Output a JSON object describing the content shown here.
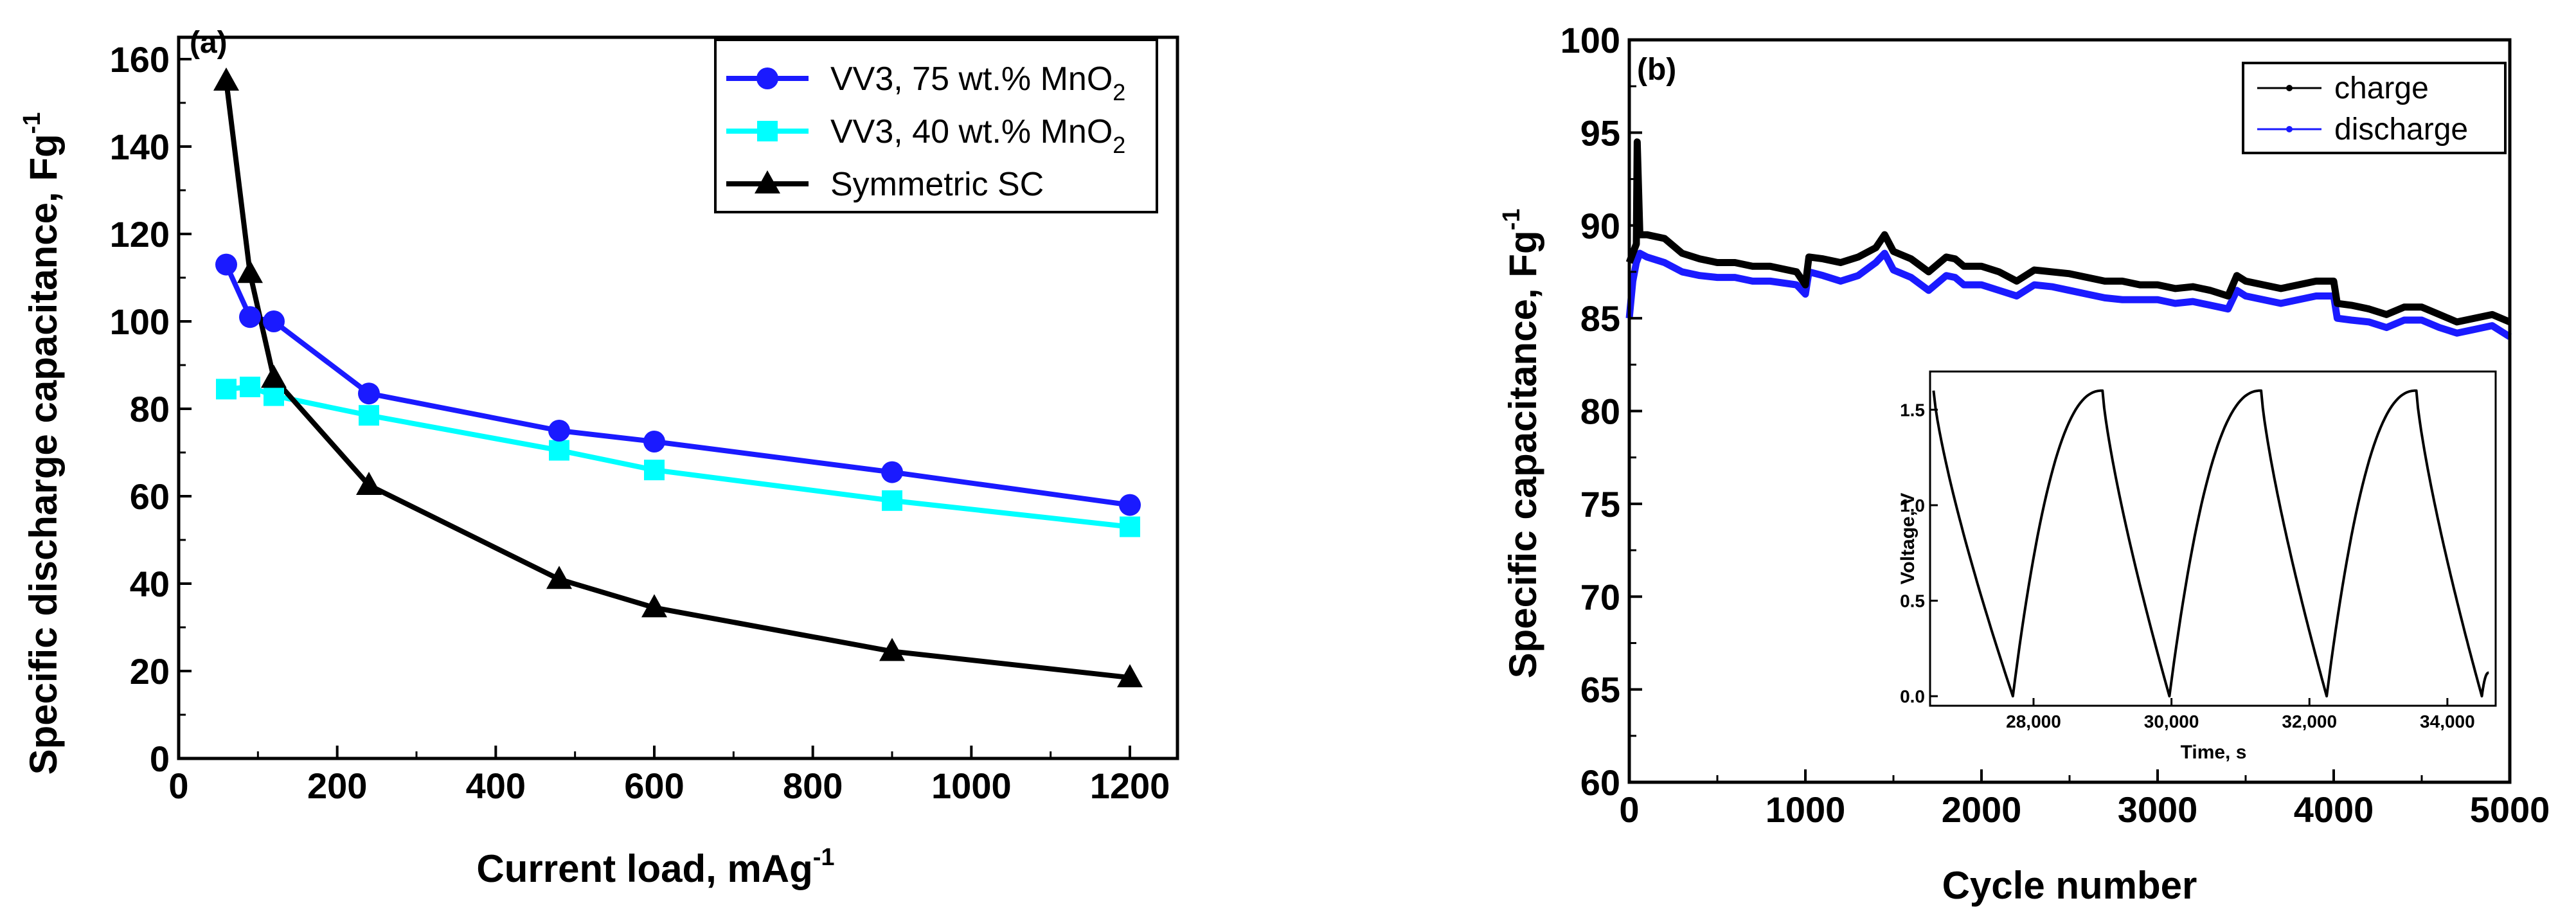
{
  "chart_data": [
    {
      "type": "line",
      "panel_label": "(a)",
      "xlabel": "Current load, mAg",
      "xlabel_sup": "-1",
      "ylabel": "Specific discharge capacitance, Fg",
      "ylabel_sup": "-1",
      "xlim": [
        0,
        1260
      ],
      "ylim": [
        0,
        165
      ],
      "xticks": [
        0,
        200,
        400,
        600,
        800,
        1000,
        1200
      ],
      "yticks": [
        0,
        20,
        40,
        60,
        80,
        100,
        120,
        140,
        160
      ],
      "legend_position": "top-right",
      "series": [
        {
          "name": "VV3, 75 wt.% MnO",
          "sub": "2",
          "color": "#1a1aff",
          "marker": "circle",
          "x": [
            60,
            90,
            120,
            240,
            480,
            600,
            900,
            1200
          ],
          "y": [
            113,
            101,
            100,
            83.5,
            75,
            72.5,
            65.5,
            58
          ]
        },
        {
          "name": "VV3, 40 wt.% MnO",
          "sub": "2",
          "color": "#00ffff",
          "marker": "square",
          "x": [
            60,
            90,
            120,
            240,
            480,
            600,
            900,
            1200
          ],
          "y": [
            84.5,
            85,
            83,
            78.5,
            70.5,
            66,
            59,
            53
          ]
        },
        {
          "name": "Symmetric SC",
          "sub": "",
          "color": "#000000",
          "marker": "triangle",
          "x": [
            60,
            90,
            120,
            240,
            480,
            600,
            900,
            1200
          ],
          "y": [
            155,
            111,
            87,
            62.5,
            41,
            34.5,
            24.5,
            18.5
          ]
        }
      ]
    },
    {
      "type": "line",
      "panel_label": "(b)",
      "xlabel": "Cycle number",
      "ylabel": "Specific capacitance, Fg",
      "ylabel_sup": "-1",
      "xlim": [
        0,
        5000
      ],
      "ylim": [
        60,
        100
      ],
      "xticks": [
        0,
        1000,
        2000,
        3000,
        4000,
        5000
      ],
      "yticks": [
        60,
        65,
        70,
        75,
        80,
        85,
        90,
        95,
        100
      ],
      "legend_position": "top-right",
      "series": [
        {
          "name": "charge",
          "color": "#000000",
          "x": [
            0,
            20,
            40,
            45,
            60,
            100,
            200,
            300,
            400,
            500,
            600,
            700,
            800,
            950,
            1000,
            1020,
            1100,
            1200,
            1300,
            1400,
            1450,
            1500,
            1600,
            1700,
            1800,
            1850,
            1900,
            2000,
            2100,
            2200,
            2300,
            2400,
            2500,
            2600,
            2700,
            2800,
            2900,
            3000,
            3100,
            3200,
            3300,
            3400,
            3450,
            3500,
            3600,
            3700,
            3800,
            3900,
            4000,
            4020,
            4100,
            4200,
            4300,
            4400,
            4500,
            4600,
            4700,
            4800,
            4900,
            5000
          ],
          "y": [
            88.0,
            88.5,
            89.0,
            94.5,
            89.5,
            89.5,
            89.3,
            88.5,
            88.2,
            88.0,
            88.0,
            87.8,
            87.8,
            87.5,
            86.8,
            88.3,
            88.2,
            88.0,
            88.3,
            88.8,
            89.5,
            88.6,
            88.2,
            87.5,
            88.3,
            88.2,
            87.8,
            87.8,
            87.5,
            87.0,
            87.6,
            87.5,
            87.4,
            87.2,
            87.0,
            87.0,
            86.8,
            86.8,
            86.6,
            86.7,
            86.5,
            86.2,
            87.3,
            87.0,
            86.8,
            86.6,
            86.8,
            87.0,
            87.0,
            85.8,
            85.7,
            85.5,
            85.2,
            85.6,
            85.6,
            85.2,
            84.8,
            85.0,
            85.2,
            84.8
          ]
        },
        {
          "name": "discharge",
          "color": "#1a1aff",
          "x": [
            0,
            20,
            40,
            60,
            100,
            200,
            300,
            400,
            500,
            600,
            700,
            800,
            950,
            1000,
            1020,
            1100,
            1200,
            1300,
            1400,
            1450,
            1500,
            1600,
            1700,
            1800,
            1850,
            1900,
            2000,
            2100,
            2200,
            2300,
            2400,
            2500,
            2600,
            2700,
            2800,
            2900,
            3000,
            3100,
            3200,
            3300,
            3400,
            3450,
            3500,
            3600,
            3700,
            3800,
            3900,
            4000,
            4020,
            4100,
            4200,
            4300,
            4400,
            4500,
            4600,
            4700,
            4800,
            4900,
            5000
          ],
          "y": [
            85.0,
            87.0,
            88.0,
            88.5,
            88.3,
            88.0,
            87.5,
            87.3,
            87.2,
            87.2,
            87.0,
            87.0,
            86.8,
            86.3,
            87.5,
            87.3,
            87.0,
            87.3,
            88.0,
            88.5,
            87.6,
            87.2,
            86.5,
            87.3,
            87.2,
            86.8,
            86.8,
            86.5,
            86.2,
            86.8,
            86.7,
            86.5,
            86.3,
            86.1,
            86.0,
            86.0,
            86.0,
            85.8,
            85.9,
            85.7,
            85.5,
            86.5,
            86.2,
            86.0,
            85.8,
            86.0,
            86.2,
            86.2,
            85.0,
            84.9,
            84.8,
            84.5,
            84.9,
            84.9,
            84.5,
            84.2,
            84.4,
            84.6,
            84.0
          ]
        }
      ]
    },
    {
      "type": "line",
      "panel_label": "inset",
      "xlabel": "Time, s",
      "ylabel": "Voltage, V",
      "xlim": [
        26500,
        34700
      ],
      "ylim": [
        -0.05,
        1.7
      ],
      "xticks": [
        28000,
        30000,
        32000,
        34000
      ],
      "xtick_labels": [
        "28,000",
        "30,000",
        "32,000",
        "34,000"
      ],
      "yticks": [
        0.0,
        0.5,
        1.0,
        1.5
      ],
      "ytick_labels": [
        "0.0",
        "0.5",
        "1.0",
        "1.5"
      ],
      "series": [
        {
          "name": "voltage",
          "color": "#000000",
          "cycles": [
            [
              26550,
              27700,
              29000
            ],
            [
              29000,
              29970,
              31300
            ],
            [
              31300,
              32250,
              33550
            ],
            [
              33550,
              34500,
              34600
            ]
          ],
          "vmax": 1.6,
          "vmin": 0.0
        }
      ]
    }
  ]
}
